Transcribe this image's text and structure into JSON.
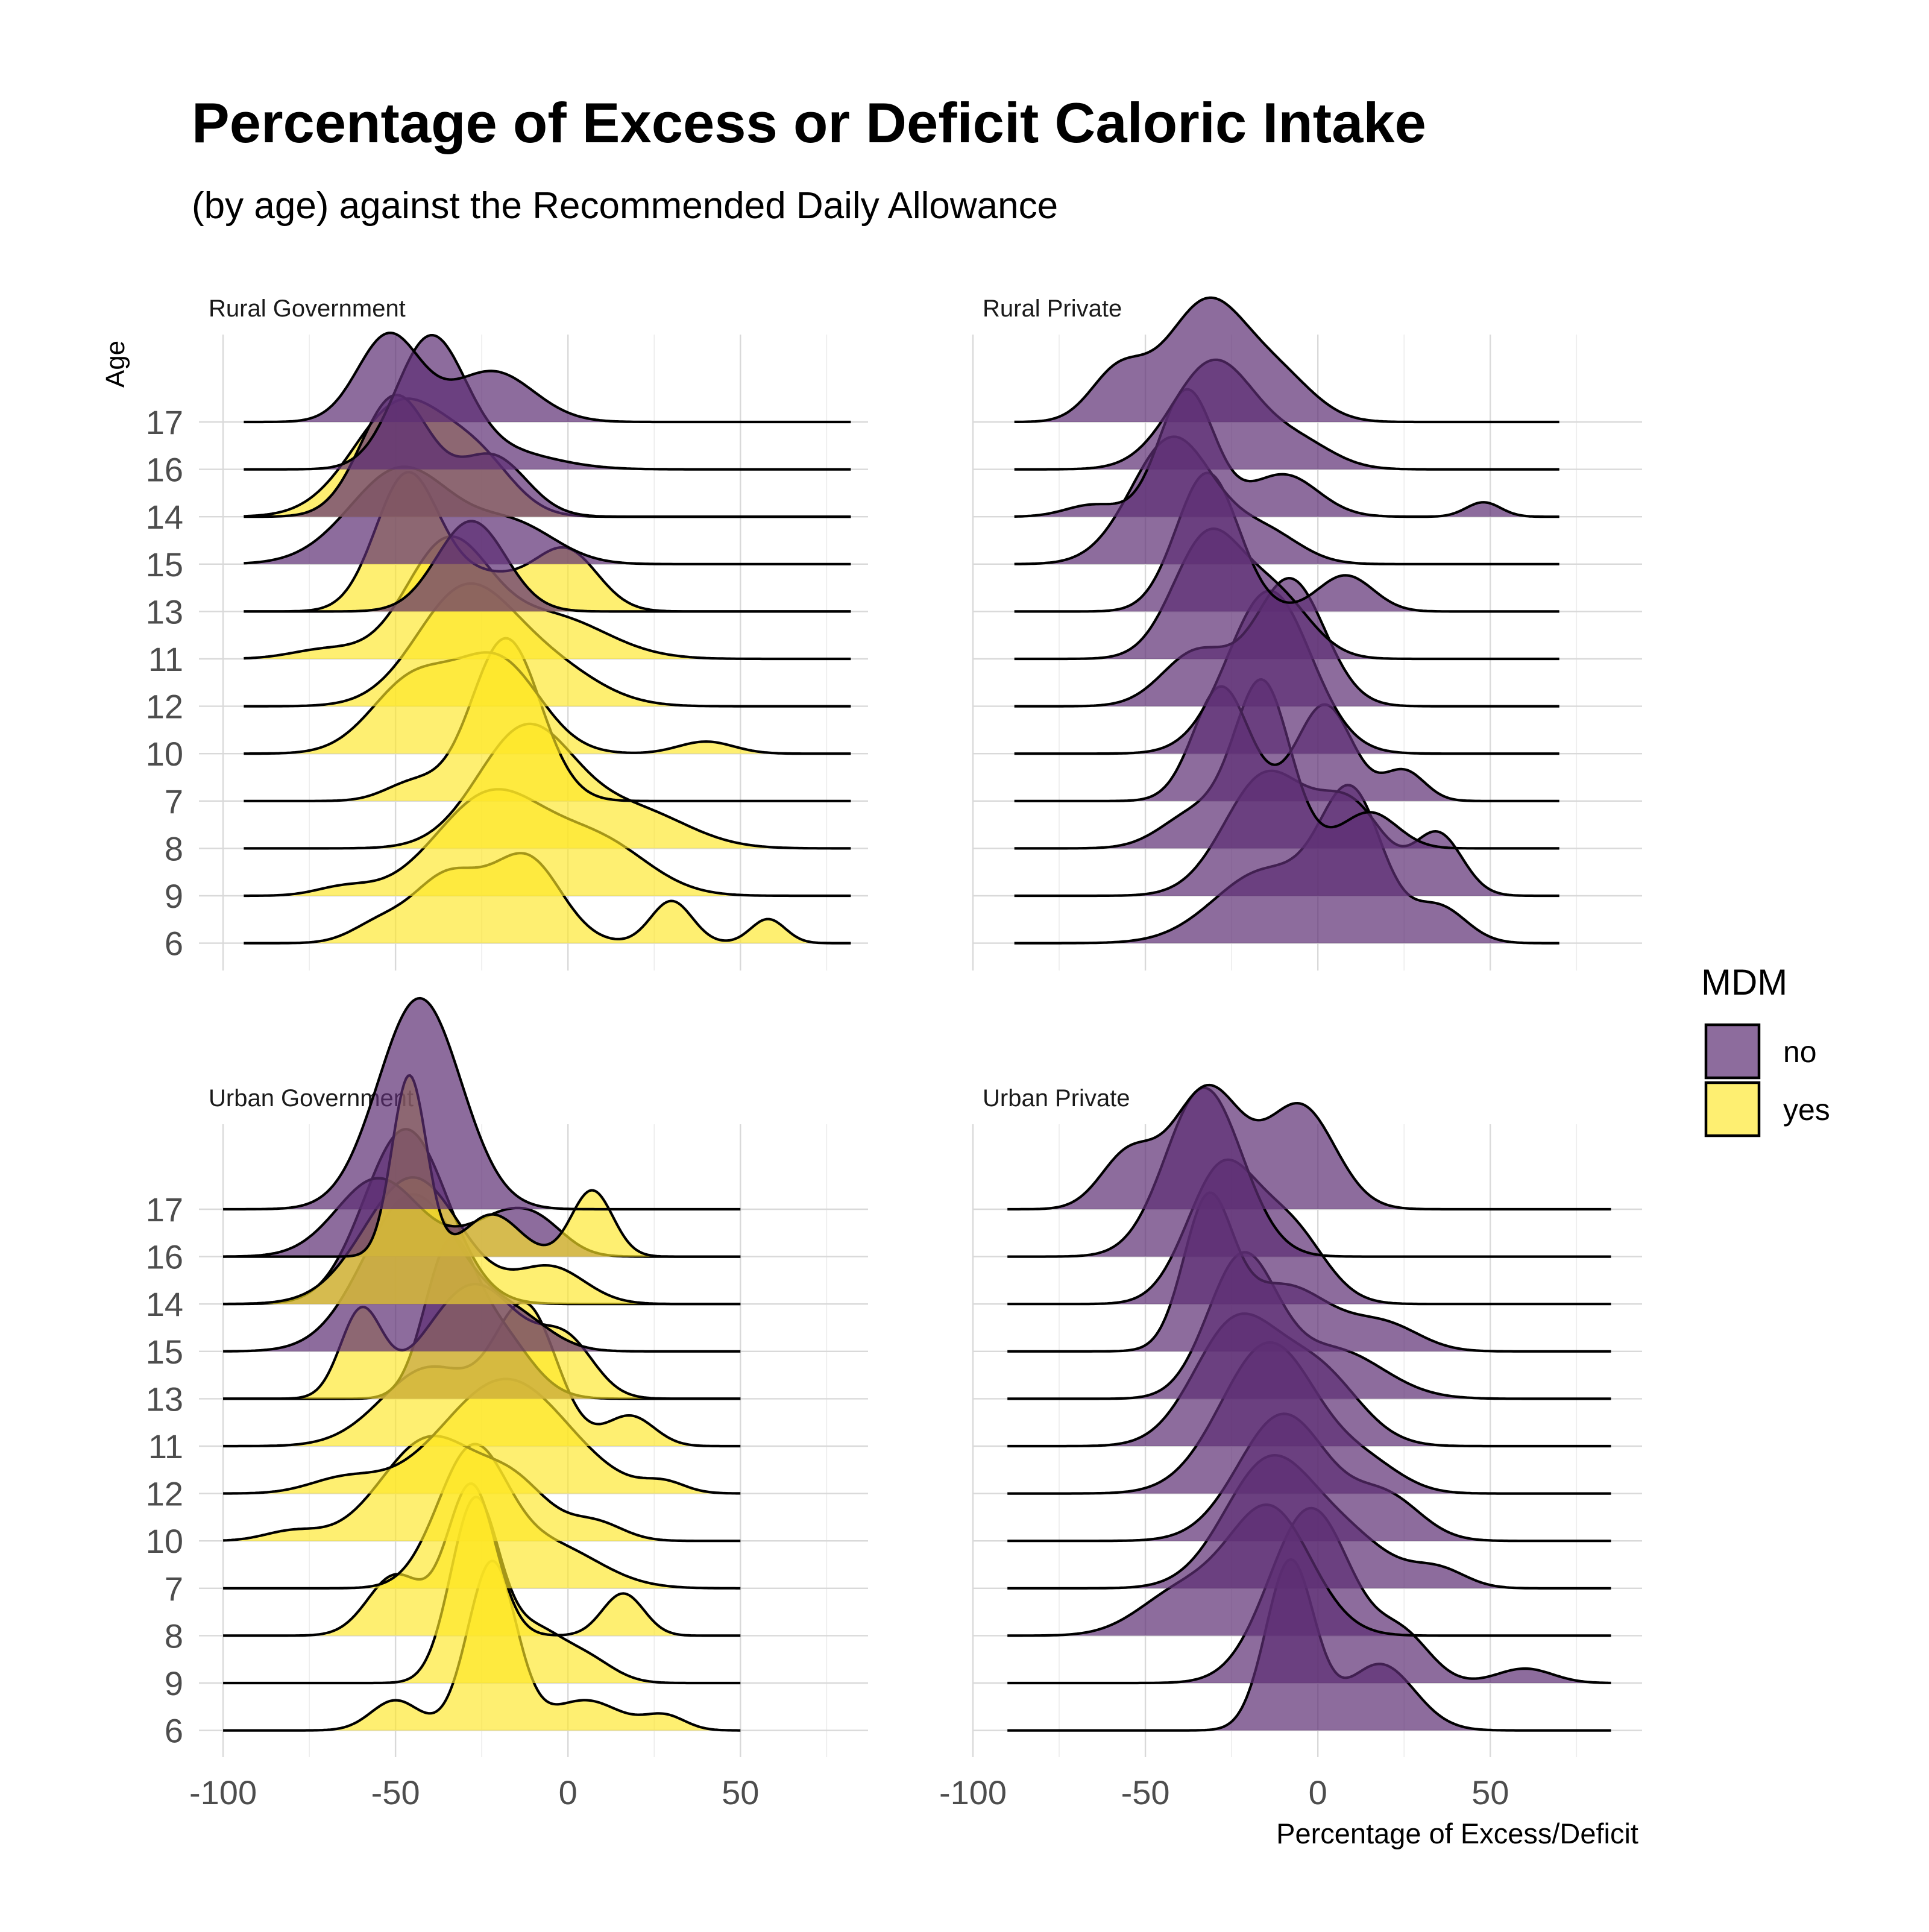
{
  "chart_data": {
    "type": "ridgeline",
    "title": "Percentage of Excess or Deficit Caloric Intake",
    "subtitle": "(by age) against the Recommended Daily Allowance",
    "ylabel": "Age",
    "xlabel": "Percentage of Excess/Deficit",
    "x_ticks": [
      -100,
      -50,
      0,
      50
    ],
    "x_tick_labels": [
      "-100",
      "-50",
      "0",
      "50"
    ],
    "age_rows": [
      "17",
      "16",
      "14",
      "15",
      "13",
      "11",
      "12",
      "10",
      "7",
      "8",
      "9",
      "6"
    ],
    "legend": {
      "title": "MDM",
      "entries": [
        {
          "key": "no",
          "label": "no",
          "color": "#5c2d73"
        },
        {
          "key": "yes",
          "label": "yes",
          "color": "#fde725"
        }
      ]
    },
    "colors": {
      "no": "#5c2d73",
      "yes": "#fde725",
      "outline": "#000000"
    },
    "grid": true,
    "panels": [
      {
        "label": "Rural Government",
        "x_domain": [
          -107,
          87
        ],
        "line_range": [
          -94,
          82
        ],
        "ridges": [
          {
            "age": "17",
            "mdm": "no",
            "peaks": [
              [
                -52,
                9,
                0.72
              ],
              [
                -22,
                12,
                0.42
              ]
            ]
          },
          {
            "age": "16",
            "mdm": "no",
            "peaks": [
              [
                -40,
                10,
                1.05
              ],
              [
                -20,
                15,
                0.15
              ]
            ]
          },
          {
            "age": "14",
            "mdm": "yes",
            "peaks": [
              [
                -48,
                14,
                0.95
              ],
              [
                -25,
                10,
                0.35
              ]
            ]
          },
          {
            "age": "14",
            "mdm": "no",
            "peaks": [
              [
                -50,
                10,
                1.0
              ],
              [
                -22,
                10,
                0.5
              ]
            ]
          },
          {
            "age": "15",
            "mdm": "no",
            "peaks": [
              [
                -48,
                15,
                0.8
              ],
              [
                -15,
                12,
                0.3
              ]
            ]
          },
          {
            "age": "13",
            "mdm": "yes",
            "peaks": [
              [
                -47,
                9,
                1.05
              ],
              [
                0,
                9,
                0.45
              ],
              [
                -25,
                15,
                0.3
              ]
            ]
          },
          {
            "age": "13",
            "mdm": "no",
            "peaks": [
              [
                -28,
                10,
                0.75
              ]
            ]
          },
          {
            "age": "11",
            "mdm": "yes",
            "peaks": [
              [
                -35,
                12,
                0.95
              ],
              [
                -5,
                16,
                0.35
              ],
              [
                -70,
                10,
                0.08
              ]
            ]
          },
          {
            "age": "12",
            "mdm": "yes",
            "peaks": [
              [
                -30,
                14,
                0.95
              ],
              [
                -5,
                14,
                0.3
              ]
            ]
          },
          {
            "age": "10",
            "mdm": "yes",
            "peaks": [
              [
                -45,
                12,
                0.6
              ],
              [
                -20,
                12,
                0.75
              ],
              [
                40,
                8,
                0.1
              ]
            ]
          },
          {
            "age": "7",
            "mdm": "yes",
            "peaks": [
              [
                -18,
                10,
                1.35
              ],
              [
                -45,
                8,
                0.15
              ]
            ]
          },
          {
            "age": "8",
            "mdm": "yes",
            "peaks": [
              [
                -12,
                14,
                1.0
              ],
              [
                20,
                15,
                0.3
              ]
            ]
          },
          {
            "age": "9",
            "mdm": "yes",
            "peaks": [
              [
                -22,
                16,
                0.85
              ],
              [
                10,
                14,
                0.4
              ],
              [
                -65,
                8,
                0.07
              ]
            ]
          },
          {
            "age": "6",
            "mdm": "yes",
            "peaks": [
              [
                -35,
                10,
                0.55
              ],
              [
                -12,
                10,
                0.7
              ],
              [
                30,
                6,
                0.35
              ],
              [
                58,
                5,
                0.2
              ],
              [
                -55,
                8,
                0.15
              ]
            ]
          }
        ]
      },
      {
        "label": "Rural Private",
        "x_domain": [
          -100,
          94
        ],
        "line_range": [
          -88,
          70
        ],
        "ridges": [
          {
            "age": "17",
            "mdm": "no",
            "peaks": [
              [
                -32,
                12,
                1.0
              ],
              [
                -58,
                8,
                0.4
              ],
              [
                -10,
                10,
                0.3
              ]
            ]
          },
          {
            "age": "16",
            "mdm": "no",
            "peaks": [
              [
                -30,
                12,
                0.9
              ],
              [
                -5,
                10,
                0.2
              ]
            ]
          },
          {
            "age": "14",
            "mdm": "no",
            "peaks": [
              [
                -38,
                8,
                1.05
              ],
              [
                -10,
                10,
                0.35
              ],
              [
                48,
                5,
                0.12
              ],
              [
                -65,
                8,
                0.1
              ]
            ]
          },
          {
            "age": "15",
            "mdm": "no",
            "peaks": [
              [
                -42,
                12,
                1.05
              ],
              [
                -15,
                10,
                0.25
              ]
            ]
          },
          {
            "age": "13",
            "mdm": "no",
            "peaks": [
              [
                -32,
                9,
                1.15
              ],
              [
                8,
                8,
                0.3
              ]
            ]
          },
          {
            "age": "11",
            "mdm": "no",
            "peaks": [
              [
                -32,
                10,
                1.0
              ],
              [
                -12,
                10,
                0.5
              ]
            ]
          },
          {
            "age": "12",
            "mdm": "no",
            "peaks": [
              [
                -8,
                10,
                1.05
              ],
              [
                -35,
                10,
                0.45
              ]
            ]
          },
          {
            "age": "10",
            "mdm": "no",
            "peaks": [
              [
                -14,
                12,
                1.35
              ]
            ]
          },
          {
            "age": "7",
            "mdm": "no",
            "peaks": [
              [
                -28,
                8,
                0.95
              ],
              [
                2,
                8,
                0.8
              ],
              [
                25,
                6,
                0.25
              ]
            ]
          },
          {
            "age": "8",
            "mdm": "no",
            "peaks": [
              [
                -16,
                8,
                1.35
              ],
              [
                -35,
                10,
                0.3
              ],
              [
                15,
                8,
                0.3
              ]
            ]
          },
          {
            "age": "9",
            "mdm": "no",
            "peaks": [
              [
                -15,
                12,
                1.0
              ],
              [
                10,
                10,
                0.7
              ],
              [
                35,
                7,
                0.5
              ]
            ]
          },
          {
            "age": "6",
            "mdm": "no",
            "peaks": [
              [
                10,
                9,
                1.15
              ],
              [
                -15,
                15,
                0.6
              ],
              [
                35,
                8,
                0.3
              ]
            ]
          }
        ]
      },
      {
        "label": "Urban Government",
        "x_domain": [
          -107,
          87
        ],
        "line_range": [
          -100,
          50
        ],
        "ridges": [
          {
            "age": "17",
            "mdm": "no",
            "peaks": [
              [
                -43,
                12,
                1.75
              ]
            ]
          },
          {
            "age": "16",
            "mdm": "no",
            "peaks": [
              [
                -55,
                12,
                0.65
              ],
              [
                -20,
                10,
                0.3
              ],
              [
                -8,
                8,
                0.2
              ]
            ]
          },
          {
            "age": "16",
            "mdm": "yes",
            "peaks": [
              [
                -46,
                5,
                1.5
              ],
              [
                -22,
                8,
                0.35
              ],
              [
                7,
                6,
                0.55
              ]
            ]
          },
          {
            "age": "14",
            "mdm": "no",
            "peaks": [
              [
                -47,
                12,
                1.45
              ]
            ]
          },
          {
            "age": "14",
            "mdm": "yes",
            "peaks": [
              [
                -45,
                14,
                1.05
              ],
              [
                -5,
                10,
                0.3
              ]
            ]
          },
          {
            "age": "15",
            "mdm": "no",
            "peaks": [
              [
                -45,
                14,
                1.3
              ],
              [
                -15,
                10,
                0.25
              ]
            ]
          },
          {
            "age": "13",
            "mdm": "no",
            "peaks": [
              [
                -35,
                7,
                1.05
              ],
              [
                -22,
                10,
                0.6
              ]
            ]
          },
          {
            "age": "13",
            "mdm": "yes",
            "peaks": [
              [
                -60,
                6,
                0.7
              ],
              [
                -27,
                14,
                0.95
              ],
              [
                0,
                8,
                0.4
              ]
            ]
          },
          {
            "age": "11",
            "mdm": "yes",
            "peaks": [
              [
                -12,
                9,
                1.1
              ],
              [
                -40,
                14,
                0.65
              ],
              [
                18,
                7,
                0.25
              ]
            ]
          },
          {
            "age": "12",
            "mdm": "yes",
            "peaks": [
              [
                -18,
                18,
                0.95
              ],
              [
                -65,
                10,
                0.12
              ],
              [
                28,
                6,
                0.08
              ]
            ]
          },
          {
            "age": "10",
            "mdm": "yes",
            "peaks": [
              [
                -40,
                14,
                0.85
              ],
              [
                -15,
                10,
                0.4
              ],
              [
                8,
                8,
                0.15
              ],
              [
                -80,
                8,
                0.08
              ]
            ]
          },
          {
            "age": "7",
            "mdm": "yes",
            "peaks": [
              [
                -28,
                10,
                1.1
              ],
              [
                -5,
                14,
                0.35
              ]
            ]
          },
          {
            "age": "8",
            "mdm": "yes",
            "peaks": [
              [
                -28,
                7,
                1.25
              ],
              [
                -50,
                8,
                0.5
              ],
              [
                16,
                6,
                0.35
              ]
            ]
          },
          {
            "age": "9",
            "mdm": "yes",
            "peaks": [
              [
                -27,
                7,
                1.5
              ],
              [
                -10,
                8,
                0.4
              ],
              [
                5,
                8,
                0.2
              ]
            ]
          },
          {
            "age": "6",
            "mdm": "yes",
            "peaks": [
              [
                -22,
                7,
                1.4
              ],
              [
                -50,
                7,
                0.25
              ],
              [
                5,
                10,
                0.25
              ],
              [
                28,
                6,
                0.12
              ]
            ]
          }
        ]
      },
      {
        "label": "Urban Private",
        "x_domain": [
          -100,
          94
        ],
        "line_range": [
          -90,
          85
        ],
        "ridges": [
          {
            "age": "17",
            "mdm": "no",
            "peaks": [
              [
                -32,
                10,
                1.0
              ],
              [
                -5,
                10,
                0.85
              ],
              [
                -55,
                8,
                0.45
              ]
            ]
          },
          {
            "age": "16",
            "mdm": "no",
            "peaks": [
              [
                -33,
                11,
                1.4
              ]
            ]
          },
          {
            "age": "14",
            "mdm": "no",
            "peaks": [
              [
                -28,
                10,
                1.1
              ],
              [
                -8,
                10,
                0.6
              ]
            ]
          },
          {
            "age": "15",
            "mdm": "no",
            "peaks": [
              [
                -32,
                7,
                1.15
              ],
              [
                -10,
                14,
                0.55
              ],
              [
                20,
                10,
                0.2
              ]
            ]
          },
          {
            "age": "13",
            "mdm": "no",
            "peaks": [
              [
                -22,
                10,
                1.15
              ],
              [
                5,
                14,
                0.4
              ]
            ]
          },
          {
            "age": "11",
            "mdm": "no",
            "peaks": [
              [
                -24,
                12,
                1.0
              ],
              [
                0,
                12,
                0.6
              ]
            ]
          },
          {
            "age": "12",
            "mdm": "no",
            "peaks": [
              [
                -14,
                14,
                1.25
              ],
              [
                15,
                10,
                0.2
              ]
            ]
          },
          {
            "age": "10",
            "mdm": "no",
            "peaks": [
              [
                -10,
                13,
                1.05
              ],
              [
                20,
                10,
                0.35
              ]
            ]
          },
          {
            "age": "7",
            "mdm": "no",
            "peaks": [
              [
                -14,
                13,
                1.05
              ],
              [
                10,
                12,
                0.35
              ],
              [
                35,
                8,
                0.15
              ]
            ]
          },
          {
            "age": "8",
            "mdm": "no",
            "peaks": [
              [
                -14,
                12,
                1.05
              ],
              [
                -40,
                12,
                0.35
              ]
            ]
          },
          {
            "age": "9",
            "mdm": "no",
            "peaks": [
              [
                -2,
                12,
                1.45
              ],
              [
                25,
                8,
                0.35
              ],
              [
                60,
                8,
                0.12
              ]
            ]
          },
          {
            "age": "6",
            "mdm": "no",
            "peaks": [
              [
                -8,
                7,
                1.4
              ],
              [
                18,
                10,
                0.55
              ]
            ]
          }
        ]
      }
    ]
  }
}
